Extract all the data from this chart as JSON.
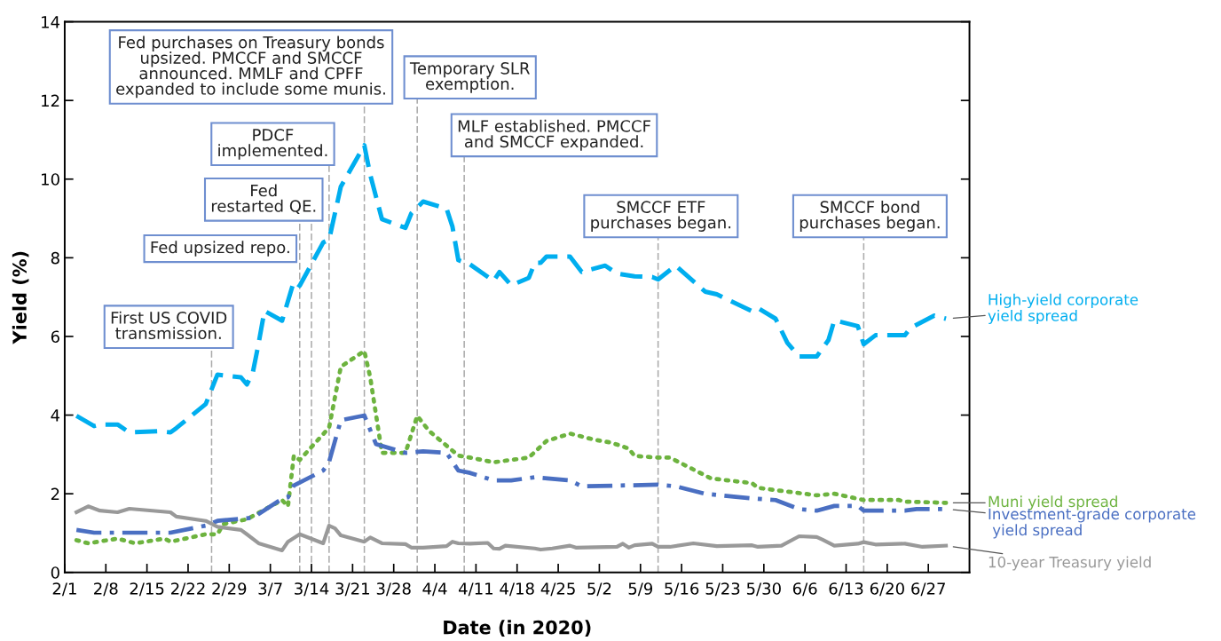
{
  "chart_data": {
    "type": "line",
    "xlabel": "Date (in 2020)",
    "ylabel": "Yield (%)",
    "xlim": [
      "2020-02-01",
      "2020-07-04"
    ],
    "ylim": [
      0,
      14
    ],
    "yticks": [
      0,
      2,
      4,
      6,
      8,
      10,
      12,
      14
    ],
    "xticks": [
      {
        "value": "2020-02-01",
        "label": "2/1"
      },
      {
        "value": "2020-02-08",
        "label": "2/8"
      },
      {
        "value": "2020-02-15",
        "label": "2/15"
      },
      {
        "value": "2020-02-22",
        "label": "2/22"
      },
      {
        "value": "2020-02-29",
        "label": "2/29"
      },
      {
        "value": "2020-03-07",
        "label": "3/7"
      },
      {
        "value": "2020-03-14",
        "label": "3/14"
      },
      {
        "value": "2020-03-21",
        "label": "3/21"
      },
      {
        "value": "2020-03-28",
        "label": "3/28"
      },
      {
        "value": "2020-04-04",
        "label": "4/4"
      },
      {
        "value": "2020-04-11",
        "label": "4/11"
      },
      {
        "value": "2020-04-18",
        "label": "4/18"
      },
      {
        "value": "2020-04-25",
        "label": "4/25"
      },
      {
        "value": "2020-05-02",
        "label": "5/2"
      },
      {
        "value": "2020-05-09",
        "label": "5/9"
      },
      {
        "value": "2020-05-16",
        "label": "5/16"
      },
      {
        "value": "2020-05-23",
        "label": "5/23"
      },
      {
        "value": "2020-05-30",
        "label": "5/30"
      },
      {
        "value": "2020-06-06",
        "label": "6/6"
      },
      {
        "value": "2020-06-13",
        "label": "6/13"
      },
      {
        "value": "2020-06-20",
        "label": "6/20"
      },
      {
        "value": "2020-06-27",
        "label": "6/27"
      }
    ],
    "grid": false,
    "legend": false,
    "marker": "none",
    "series": [
      {
        "name": "High-yield corporate\nyield spread",
        "color": "#00aeef",
        "line_style": "dashed",
        "x": [
          "2020-02-03",
          "2020-02-06",
          "2020-02-07",
          "2020-02-10",
          "2020-02-12",
          "2020-02-17",
          "2020-02-19",
          "2020-02-20",
          "2020-02-25",
          "2020-02-27",
          "2020-03-02",
          "2020-03-03",
          "2020-03-04",
          "2020-03-05",
          "2020-03-06",
          "2020-03-09",
          "2020-03-11",
          "2020-03-12",
          "2020-03-16",
          "2020-03-17",
          "2020-03-19",
          "2020-03-23",
          "2020-03-24",
          "2020-03-26",
          "2020-03-30",
          "2020-03-31",
          "2020-04-02",
          "2020-04-06",
          "2020-04-07",
          "2020-04-08",
          "2020-04-10",
          "2020-04-14",
          "2020-04-15",
          "2020-04-17",
          "2020-04-20",
          "2020-04-21",
          "2020-04-22",
          "2020-04-23",
          "2020-04-27",
          "2020-04-29",
          "2020-05-03",
          "2020-05-05",
          "2020-05-08",
          "2020-05-11",
          "2020-05-12",
          "2020-05-15",
          "2020-05-20",
          "2020-05-22",
          "2020-05-28",
          "2020-05-29",
          "2020-06-01",
          "2020-06-03",
          "2020-06-05",
          "2020-06-08",
          "2020-06-10",
          "2020-06-11",
          "2020-06-15",
          "2020-06-16",
          "2020-06-18",
          "2020-06-23",
          "2020-06-24",
          "2020-06-28",
          "2020-06-30"
        ],
        "values": [
          3.98,
          3.72,
          3.76,
          3.76,
          3.56,
          3.59,
          3.56,
          3.67,
          4.28,
          5.03,
          4.96,
          4.78,
          5.07,
          5.82,
          6.65,
          6.4,
          7.4,
          7.29,
          8.39,
          8.46,
          9.81,
          10.86,
          10.11,
          8.98,
          8.76,
          9.13,
          9.43,
          9.25,
          8.79,
          7.94,
          7.83,
          7.41,
          7.64,
          7.3,
          7.49,
          7.87,
          7.87,
          8.03,
          8.03,
          7.64,
          7.8,
          7.6,
          7.53,
          7.51,
          7.45,
          7.8,
          7.14,
          7.07,
          6.64,
          6.72,
          6.45,
          5.84,
          5.49,
          5.49,
          5.91,
          6.41,
          6.26,
          5.8,
          6.03,
          6.03,
          6.22,
          6.53,
          6.45
        ]
      },
      {
        "name": "Muni yield spread",
        "color": "#6db33f",
        "line_style": "dotted",
        "x": [
          "2020-02-03",
          "2020-02-05",
          "2020-02-10",
          "2020-02-13",
          "2020-02-18",
          "2020-02-19",
          "2020-02-25",
          "2020-02-27",
          "2020-02-28",
          "2020-03-03",
          "2020-03-09",
          "2020-03-10",
          "2020-03-11",
          "2020-03-12",
          "2020-03-17",
          "2020-03-19",
          "2020-03-23",
          "2020-03-24",
          "2020-03-26",
          "2020-03-30",
          "2020-04-01",
          "2020-04-03",
          "2020-04-08",
          "2020-04-10",
          "2020-04-14",
          "2020-04-20",
          "2020-04-23",
          "2020-04-27",
          "2020-05-01",
          "2020-05-04",
          "2020-05-07",
          "2020-05-08",
          "2020-05-12",
          "2020-05-14",
          "2020-05-21",
          "2020-05-28",
          "2020-05-29",
          "2020-06-08",
          "2020-06-11",
          "2020-06-16",
          "2020-06-22",
          "2020-06-23",
          "2020-06-30"
        ],
        "values": [
          0.82,
          0.74,
          0.86,
          0.74,
          0.86,
          0.78,
          0.97,
          0.97,
          1.23,
          1.35,
          1.84,
          1.68,
          2.97,
          2.86,
          3.68,
          5.23,
          5.63,
          4.96,
          3.04,
          3.04,
          3.98,
          3.6,
          2.97,
          2.92,
          2.8,
          2.92,
          3.34,
          3.53,
          3.38,
          3.3,
          3.15,
          2.96,
          2.92,
          2.92,
          2.39,
          2.27,
          2.15,
          1.96,
          2.0,
          1.84,
          1.84,
          1.8,
          1.77
        ]
      },
      {
        "name": "Investment-grade corporate\n yield spread",
        "color": "#4a6fc2",
        "line_style": "dashdot",
        "x": [
          "2020-02-03",
          "2020-02-06",
          "2020-02-19",
          "2020-02-25",
          "2020-02-27",
          "2020-03-04",
          "2020-03-09",
          "2020-03-10",
          "2020-03-11",
          "2020-03-16",
          "2020-03-17",
          "2020-03-19",
          "2020-03-23",
          "2020-03-25",
          "2020-03-30",
          "2020-04-02",
          "2020-04-06",
          "2020-04-08",
          "2020-04-10",
          "2020-04-14",
          "2020-04-17",
          "2020-04-21",
          "2020-04-27",
          "2020-04-29",
          "2020-05-12",
          "2020-05-15",
          "2020-05-20",
          "2020-05-28",
          "2020-06-01",
          "2020-06-05",
          "2020-06-08",
          "2020-06-11",
          "2020-06-15",
          "2020-06-16",
          "2020-06-23",
          "2020-06-25",
          "2020-06-30"
        ],
        "values": [
          1.08,
          1.01,
          1.01,
          1.19,
          1.31,
          1.39,
          1.87,
          1.91,
          2.21,
          2.59,
          2.81,
          3.87,
          3.99,
          3.26,
          3.04,
          3.08,
          3.04,
          2.59,
          2.53,
          2.34,
          2.34,
          2.42,
          2.34,
          2.19,
          2.23,
          2.19,
          2.0,
          1.88,
          1.84,
          1.61,
          1.57,
          1.69,
          1.69,
          1.57,
          1.57,
          1.61,
          1.61
        ]
      },
      {
        "name": "10-year Treasury yield",
        "color": "#999999",
        "line_style": "solid",
        "x": [
          "2020-02-03",
          "2020-02-05",
          "2020-02-07",
          "2020-02-10",
          "2020-02-12",
          "2020-02-19",
          "2020-02-20",
          "2020-02-25",
          "2020-02-27",
          "2020-03-02",
          "2020-03-03",
          "2020-03-05",
          "2020-03-09",
          "2020-03-10",
          "2020-03-12",
          "2020-03-16",
          "2020-03-17",
          "2020-03-18",
          "2020-03-19",
          "2020-03-23",
          "2020-03-24",
          "2020-03-26",
          "2020-03-30",
          "2020-03-31",
          "2020-04-02",
          "2020-04-06",
          "2020-04-07",
          "2020-04-08",
          "2020-04-10",
          "2020-04-13",
          "2020-04-14",
          "2020-04-15",
          "2020-04-16",
          "2020-04-21",
          "2020-04-22",
          "2020-04-24",
          "2020-04-27",
          "2020-04-28",
          "2020-05-05",
          "2020-05-06",
          "2020-05-07",
          "2020-05-08",
          "2020-05-11",
          "2020-05-12",
          "2020-05-14",
          "2020-05-18",
          "2020-05-22",
          "2020-05-28",
          "2020-05-29",
          "2020-06-02",
          "2020-06-05",
          "2020-06-08",
          "2020-06-09",
          "2020-06-11",
          "2020-06-15",
          "2020-06-16",
          "2020-06-18",
          "2020-06-23",
          "2020-06-26",
          "2020-06-30"
        ],
        "values": [
          1.53,
          1.68,
          1.57,
          1.53,
          1.62,
          1.53,
          1.42,
          1.31,
          1.16,
          1.08,
          0.97,
          0.74,
          0.56,
          0.78,
          0.97,
          0.74,
          1.19,
          1.12,
          0.94,
          0.78,
          0.89,
          0.74,
          0.72,
          0.63,
          0.63,
          0.67,
          0.78,
          0.74,
          0.73,
          0.75,
          0.61,
          0.6,
          0.68,
          0.61,
          0.58,
          0.61,
          0.68,
          0.63,
          0.65,
          0.73,
          0.63,
          0.69,
          0.73,
          0.65,
          0.65,
          0.74,
          0.67,
          0.69,
          0.65,
          0.68,
          0.92,
          0.9,
          0.83,
          0.68,
          0.73,
          0.77,
          0.71,
          0.73,
          0.65,
          0.68
        ]
      }
    ],
    "ref_lines": [
      {
        "axis": "x",
        "value": "2020-02-26",
        "color": "#aaaaaa",
        "line_style": "dashed"
      },
      {
        "axis": "x",
        "value": "2020-03-12",
        "color": "#aaaaaa",
        "line_style": "dashed"
      },
      {
        "axis": "x",
        "value": "2020-03-14",
        "color": "#aaaaaa",
        "line_style": "dashed"
      },
      {
        "axis": "x",
        "value": "2020-03-17",
        "color": "#aaaaaa",
        "line_style": "dashed"
      },
      {
        "axis": "x",
        "value": "2020-03-23",
        "color": "#aaaaaa",
        "line_style": "dashed"
      },
      {
        "axis": "x",
        "value": "2020-04-01",
        "color": "#aaaaaa",
        "line_style": "dashed"
      },
      {
        "axis": "x",
        "value": "2020-04-09",
        "color": "#aaaaaa",
        "line_style": "dashed"
      },
      {
        "axis": "x",
        "value": "2020-05-12",
        "color": "#aaaaaa",
        "line_style": "dashed"
      },
      {
        "axis": "x",
        "value": "2020-06-16",
        "color": "#aaaaaa",
        "line_style": "dashed"
      }
    ],
    "annotations": [
      "First US COVID\ntransmission.",
      "Fed upsized repo.",
      "Fed\nrestarted QE.",
      "PDCF\nimplemented.",
      "Fed purchases on Treasury bonds\nupsized. PMCCF and SMCCF\nannounced. MMLF and CPFF\nexpanded to include some munis.",
      "Temporary SLR\nexemption.",
      "MLF established. PMCCF\nand SMCCF expanded.",
      "SMCCF ETF\npurchases began.",
      "SMCCF bond\npurchases began."
    ]
  }
}
